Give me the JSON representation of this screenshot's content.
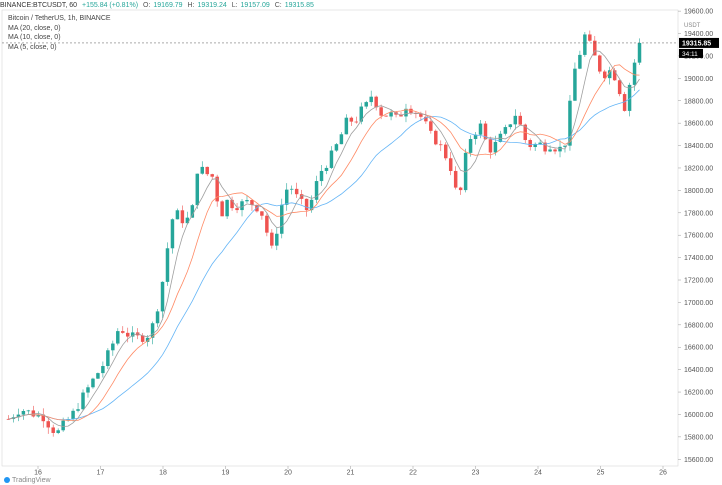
{
  "header": {
    "symbol": "BINANCE:BTCUSDT, 60",
    "change": "+155.84 (+0.81%)",
    "open_label": "O:",
    "open": "19169.79",
    "high_label": "H:",
    "high": "19319.24",
    "low_label": "L:",
    "low": "19157.09",
    "close_label": "C:",
    "close": "19315.85"
  },
  "legend": {
    "title": "Bitcoin / TetherUS, 1h, BINANCE",
    "ma1": "MA (20, close, 0)",
    "ma2": "MA (10, close, 0)",
    "ma3": "MA (5, close, 0)"
  },
  "price_axis": {
    "currency": "USDT",
    "price_tag": "19315.85",
    "countdown": "34:11"
  },
  "footer": {
    "brand": "TradingView"
  },
  "colors": {
    "up": "#26a69a",
    "down": "#ef5350",
    "ma20": "#64b5f6",
    "ma10": "#ff8a65",
    "ma5": "#9e9e9e"
  },
  "chart_data": {
    "type": "candlestick",
    "y_ticks": [
      15600,
      15800,
      16000,
      16200,
      16400,
      16600,
      16800,
      17000,
      17200,
      17400,
      17600,
      17800,
      18000,
      18200,
      18400,
      18600,
      18800,
      19000,
      19200,
      19400,
      19600
    ],
    "x_labels": [
      "16",
      "17",
      "18",
      "19",
      "20",
      "21",
      "22",
      "23",
      "24",
      "25",
      "26"
    ],
    "ylim": [
      15540,
      19610
    ],
    "path": [
      [
        0,
        15960
      ],
      [
        12,
        16050
      ],
      [
        24,
        16010
      ],
      [
        36,
        15980
      ],
      [
        44,
        15880
      ],
      [
        50,
        15830
      ],
      [
        58,
        15920
      ],
      [
        66,
        16000
      ],
      [
        76,
        16150
      ],
      [
        88,
        16320
      ],
      [
        98,
        16450
      ],
      [
        106,
        16600
      ],
      [
        114,
        16780
      ],
      [
        122,
        16720
      ],
      [
        130,
        16680
      ],
      [
        138,
        16690
      ],
      [
        146,
        16720
      ],
      [
        152,
        16900
      ],
      [
        158,
        17150
      ],
      [
        164,
        17500
      ],
      [
        170,
        17800
      ],
      [
        176,
        17780
      ],
      [
        182,
        17700
      ],
      [
        190,
        17850
      ],
      [
        196,
        18300
      ],
      [
        202,
        18100
      ],
      [
        208,
        18200
      ],
      [
        214,
        17950
      ],
      [
        220,
        17800
      ],
      [
        226,
        17920
      ],
      [
        232,
        17860
      ],
      [
        240,
        17880
      ],
      [
        248,
        17900
      ],
      [
        256,
        17850
      ],
      [
        262,
        17780
      ],
      [
        268,
        17560
      ],
      [
        272,
        17450
      ],
      [
        278,
        17720
      ],
      [
        284,
        17980
      ],
      [
        290,
        18050
      ],
      [
        296,
        17950
      ],
      [
        302,
        17880
      ],
      [
        308,
        17820
      ],
      [
        314,
        17950
      ],
      [
        320,
        18150
      ],
      [
        326,
        18220
      ],
      [
        332,
        18300
      ],
      [
        338,
        18400
      ],
      [
        344,
        18520
      ],
      [
        350,
        18650
      ],
      [
        356,
        18600
      ],
      [
        362,
        18700
      ],
      [
        368,
        18750
      ],
      [
        374,
        18850
      ],
      [
        380,
        18760
      ],
      [
        386,
        18650
      ],
      [
        392,
        18700
      ],
      [
        398,
        18630
      ],
      [
        404,
        18680
      ],
      [
        410,
        18770
      ],
      [
        416,
        18720
      ],
      [
        422,
        18690
      ],
      [
        428,
        18620
      ],
      [
        434,
        18500
      ],
      [
        440,
        18450
      ],
      [
        446,
        18380
      ],
      [
        452,
        18280
      ],
      [
        458,
        18150
      ],
      [
        462,
        17920
      ],
      [
        466,
        18000
      ],
      [
        470,
        18250
      ],
      [
        474,
        18450
      ],
      [
        480,
        18520
      ],
      [
        486,
        18580
      ],
      [
        492,
        18430
      ],
      [
        498,
        18350
      ],
      [
        504,
        18450
      ],
      [
        510,
        18500
      ],
      [
        516,
        18600
      ],
      [
        522,
        18680
      ],
      [
        528,
        18560
      ],
      [
        534,
        18410
      ],
      [
        540,
        18400
      ],
      [
        546,
        18420
      ],
      [
        552,
        18390
      ],
      [
        558,
        18410
      ],
      [
        564,
        18380
      ],
      [
        570,
        18370
      ],
      [
        576,
        18480
      ],
      [
        580,
        18950
      ],
      [
        584,
        19100
      ],
      [
        588,
        19200
      ],
      [
        592,
        19380
      ],
      [
        596,
        19380
      ],
      [
        600,
        19260
      ],
      [
        606,
        19150
      ],
      [
        612,
        19020
      ],
      [
        618,
        19080
      ],
      [
        624,
        19030
      ],
      [
        630,
        18880
      ],
      [
        634,
        18720
      ],
      [
        638,
        18870
      ],
      [
        642,
        19050
      ],
      [
        646,
        19180
      ],
      [
        650,
        19316
      ]
    ]
  }
}
